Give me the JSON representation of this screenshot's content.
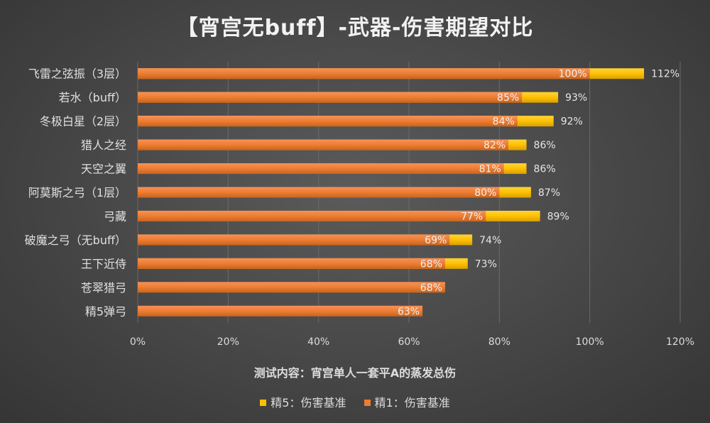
{
  "chart_data": {
    "type": "bar",
    "orientation": "horizontal",
    "title": "【宵宫无buff】-武器-伤害期望对比",
    "xlabel": "测试内容：宵宫单人一套平A的蒸发总伤",
    "categories": [
      "飞雷之弦振（3层）",
      "若水（buff）",
      "冬极白星（2层）",
      "猎人之经",
      "天空之翼",
      "阿莫斯之弓（1层）",
      "弓藏",
      "破魔之弓（无buff）",
      "王下近侍",
      "苍翠猎弓",
      "精5弹弓"
    ],
    "series": [
      {
        "name": "精5：伤害基准",
        "color": "#ffc000",
        "values": [
          112,
          93,
          92,
          86,
          86,
          87,
          89,
          74,
          73,
          null,
          null
        ],
        "labels": [
          "112%",
          "93%",
          "92%",
          "86%",
          "86%",
          "87%",
          "89%",
          "74%",
          "73%",
          "",
          ""
        ]
      },
      {
        "name": "精1：伤害基准",
        "color": "#ed7d31",
        "values": [
          100,
          85,
          84,
          82,
          81,
          80,
          77,
          69,
          68,
          68,
          63
        ],
        "labels": [
          "100%",
          "85%",
          "84%",
          "82%",
          "81%",
          "80%",
          "77%",
          "69%",
          "68%",
          "68%",
          "63%"
        ]
      }
    ],
    "xlim": [
      0,
      120
    ],
    "xticks": [
      0,
      20,
      40,
      60,
      80,
      100,
      120
    ],
    "xtick_labels": [
      "0%",
      "20%",
      "40%",
      "60%",
      "80%",
      "100%",
      "120%"
    ],
    "grid": "vertical",
    "legend": "bottom"
  }
}
